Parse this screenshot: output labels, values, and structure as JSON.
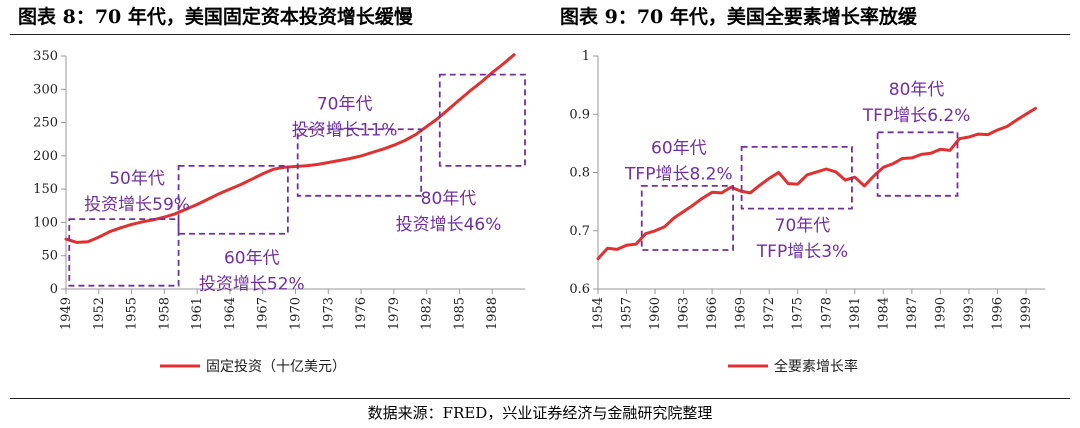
{
  "header": {
    "title_left": "图表 8：70 年代，美国固定资本投资增长缓慢",
    "title_right": "图表 9：70 年代，美国全要素增长率放缓"
  },
  "footer": {
    "source": "数据来源：FRED，兴业证券经济与金融研究院整理"
  },
  "colors": {
    "series": "#e03030",
    "annotation": "#7030a0",
    "axis": "#999999"
  },
  "chart_data": [
    {
      "type": "line",
      "title": "",
      "xlabel": "",
      "ylabel": "",
      "xlim": [
        1949,
        1991
      ],
      "ylim": [
        0,
        350
      ],
      "y_ticks": [
        0,
        50,
        100,
        150,
        200,
        250,
        300,
        350
      ],
      "x_ticks": [
        "1949",
        "1952",
        "1955",
        "1958",
        "1961",
        "1964",
        "1967",
        "1970",
        "1973",
        "1976",
        "1979",
        "1982",
        "1985",
        "1988"
      ],
      "grid": false,
      "legend": "bottom",
      "series": [
        {
          "name": "固定投资（十亿美元）",
          "x": [
            1949,
            1950,
            1951,
            1952,
            1953,
            1954,
            1955,
            1956,
            1957,
            1958,
            1959,
            1960,
            1961,
            1962,
            1963,
            1964,
            1965,
            1966,
            1967,
            1968,
            1969,
            1970,
            1971,
            1972,
            1973,
            1974,
            1975,
            1976,
            1977,
            1978,
            1979,
            1980,
            1981,
            1982,
            1983,
            1984,
            1985,
            1986,
            1987,
            1988,
            1989,
            1990
          ],
          "values": [
            75,
            70,
            71,
            78,
            86,
            92,
            97,
            101,
            104,
            108,
            113,
            120,
            127,
            135,
            143,
            150,
            157,
            165,
            173,
            180,
            183,
            184,
            185,
            187,
            190,
            193,
            196,
            200,
            205,
            210,
            216,
            223,
            232,
            244,
            256,
            270,
            284,
            298,
            311,
            325,
            338,
            352
          ]
        }
      ],
      "annotations": [
        {
          "lines": [
            "50年代",
            "投资增长59%"
          ],
          "x": 1955.5,
          "y": 158
        },
        {
          "lines": [
            "60年代",
            "投资增长52%"
          ],
          "x": 1966,
          "y": 38
        },
        {
          "lines": [
            "70年代",
            "投资增长11%"
          ],
          "x": 1974.5,
          "y": 270
        },
        {
          "lines": [
            "80年代",
            "投资增长46%"
          ],
          "x": 1984,
          "y": 128
        }
      ],
      "boxes": [
        {
          "x0": 1949.3,
          "x1": 1959.3,
          "y0": 5,
          "y1": 105
        },
        {
          "x0": 1959.3,
          "x1": 1969.3,
          "y0": 83,
          "y1": 185
        },
        {
          "x0": 1970.2,
          "x1": 1981.5,
          "y0": 140,
          "y1": 240
        },
        {
          "x0": 1983.2,
          "x1": 1991,
          "y0": 185,
          "y1": 322
        }
      ]
    },
    {
      "type": "line",
      "title": "",
      "xlabel": "",
      "ylabel": "",
      "xlim": [
        1954,
        2001
      ],
      "ylim": [
        0.6,
        1.0
      ],
      "y_ticks": [
        0.6,
        0.7,
        0.8,
        0.9,
        1
      ],
      "x_ticks": [
        "1954",
        "1957",
        "1960",
        "1963",
        "1966",
        "1969",
        "1972",
        "1975",
        "1978",
        "1981",
        "1984",
        "1987",
        "1990",
        "1993",
        "1996",
        "1999"
      ],
      "grid": false,
      "legend": "bottom",
      "series": [
        {
          "name": "全要素增长率",
          "x": [
            1954,
            1955,
            1956,
            1957,
            1958,
            1959,
            1960,
            1961,
            1962,
            1963,
            1964,
            1965,
            1966,
            1967,
            1968,
            1969,
            1970,
            1971,
            1972,
            1973,
            1974,
            1975,
            1976,
            1977,
            1978,
            1979,
            1980,
            1981,
            1982,
            1983,
            1984,
            1985,
            1986,
            1987,
            1988,
            1989,
            1990,
            1991,
            1992,
            1993,
            1994,
            1995,
            1996,
            1997,
            1998,
            1999,
            2000
          ],
          "values": [
            0.652,
            0.67,
            0.668,
            0.675,
            0.677,
            0.695,
            0.7,
            0.707,
            0.722,
            0.733,
            0.744,
            0.756,
            0.766,
            0.765,
            0.775,
            0.768,
            0.765,
            0.778,
            0.79,
            0.8,
            0.781,
            0.78,
            0.796,
            0.801,
            0.806,
            0.801,
            0.787,
            0.792,
            0.777,
            0.794,
            0.809,
            0.815,
            0.824,
            0.825,
            0.831,
            0.833,
            0.84,
            0.838,
            0.858,
            0.861,
            0.866,
            0.865,
            0.873,
            0.879,
            0.89,
            0.9,
            0.91
          ]
        }
      ],
      "annotations": [
        {
          "lines": [
            "60年代",
            "TFP增长8.2%"
          ],
          "x": 1962.5,
          "y": 0.833
        },
        {
          "lines": [
            "70年代",
            "TFP增长3%"
          ],
          "x": 1975.5,
          "y": 0.7
        },
        {
          "lines": [
            "80年代",
            "TFP增长6.2%"
          ],
          "x": 1987.5,
          "y": 0.933
        }
      ],
      "boxes": [
        {
          "x0": 1958.6,
          "x1": 1968.2,
          "y0": 0.667,
          "y1": 0.777
        },
        {
          "x0": 1969.1,
          "x1": 1980.7,
          "y0": 0.738,
          "y1": 0.844
        },
        {
          "x0": 1983.4,
          "x1": 1991.8,
          "y0": 0.76,
          "y1": 0.869
        }
      ]
    }
  ]
}
